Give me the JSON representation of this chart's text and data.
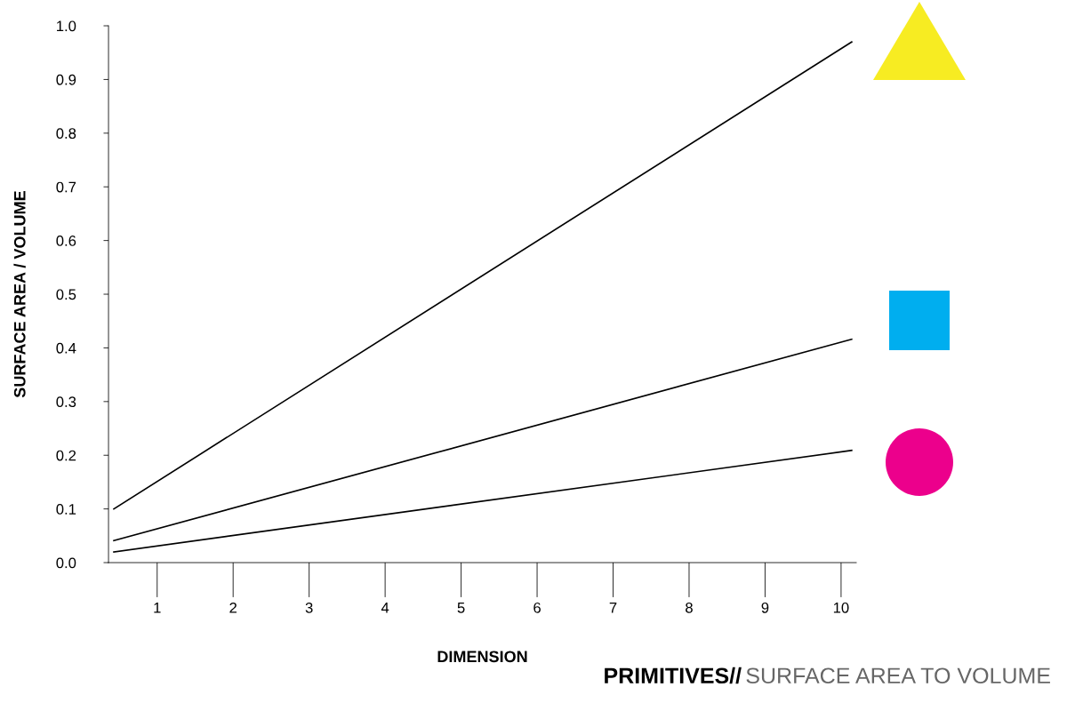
{
  "chart_data": {
    "type": "line",
    "title": "PRIMITIVES//",
    "subtitle": "SURFACE AREA TO VOLUME",
    "xlabel": "DIMENSION",
    "ylabel": "SURFACE AREA / VOLUME",
    "xlim": [
      0.36,
      10.2
    ],
    "xticks": [
      1,
      2,
      3,
      4,
      5,
      6,
      7,
      8,
      9,
      10
    ],
    "ylim": [
      0,
      1
    ],
    "yticks": [
      {
        "value": 0,
        "label": "0.0"
      },
      0.1,
      0.2,
      0.3,
      0.4,
      0.5,
      0.6,
      0.7,
      0.8,
      0.9,
      {
        "value": 1,
        "label": "1.0"
      }
    ],
    "x": [
      0.43,
      10.14
    ],
    "grid": false,
    "legend": false,
    "marker": "none",
    "line_style": "solid",
    "series": [
      {
        "color": "#000000",
        "values": [
          0.1,
          0.97
        ]
      },
      {
        "color": "#000000",
        "values": [
          0.041,
          0.416
        ]
      },
      {
        "color": "#000000",
        "values": [
          0.02,
          0.209
        ]
      }
    ]
  }
}
